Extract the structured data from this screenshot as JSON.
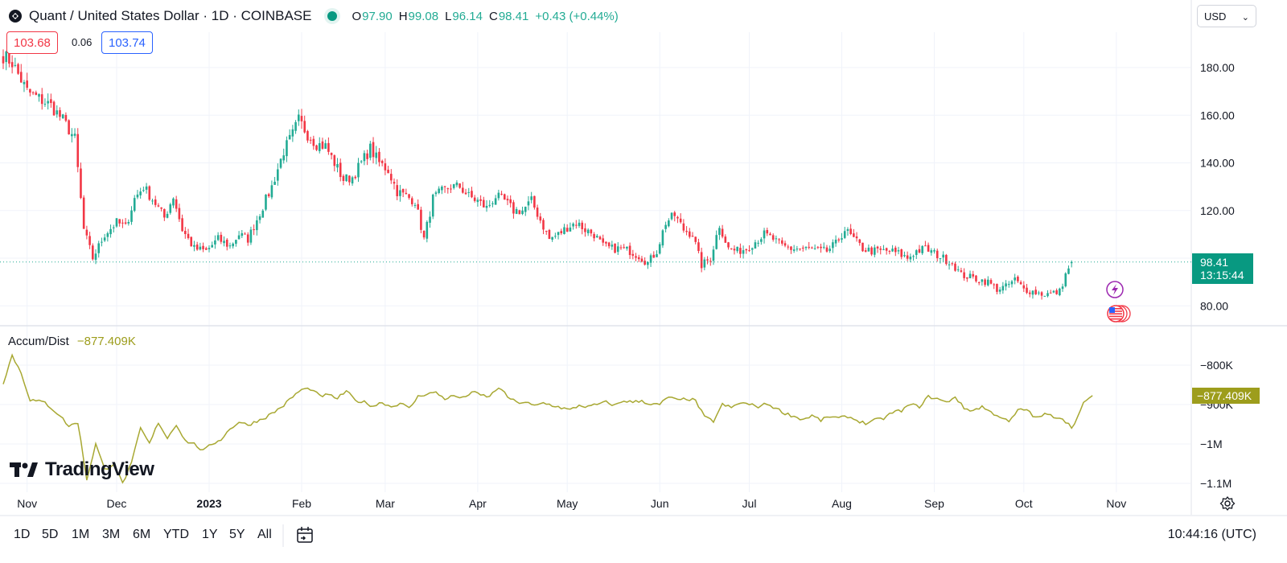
{
  "header": {
    "title": "Quant / United States Dollar · 1D · COINBASE",
    "ohlc": [
      {
        "key": "O",
        "value": "97.90"
      },
      {
        "key": "H",
        "value": "99.08"
      },
      {
        "key": "L",
        "value": "96.14"
      },
      {
        "key": "C",
        "value": "98.41"
      }
    ],
    "change": "+0.43 (+0.44%)",
    "sell_price": "103.68",
    "spread": "0.06",
    "buy_price": "103.74",
    "currency": "USD"
  },
  "indicator": {
    "name": "Accum/Dist",
    "value": "−877.409K"
  },
  "last_price": {
    "price": "98.41",
    "countdown": "13:15:44",
    "ad_value": "−877.409K"
  },
  "price_axis": {
    "ticks": [
      "180.00",
      "160.00",
      "140.00",
      "120.00",
      "80.00"
    ],
    "values": [
      180,
      160,
      140,
      120,
      80
    ]
  },
  "ad_axis": {
    "ticks": [
      "−800K",
      "−900K",
      "−1M",
      "−1.1M"
    ],
    "values": [
      -800,
      -900,
      -1000,
      -1100
    ]
  },
  "time_axis": {
    "labels": [
      "Nov",
      "Dec",
      "2023",
      "Feb",
      "Mar",
      "Apr",
      "May",
      "Jun",
      "Jul",
      "Aug",
      "Sep",
      "Oct",
      "Nov"
    ]
  },
  "brand": "TradingView",
  "timeframes": [
    "1D",
    "5D",
    "1M",
    "3M",
    "6M",
    "YTD",
    "1Y",
    "5Y",
    "All"
  ],
  "clock": "10:44:16 (UTC)",
  "colors": {
    "up": "#22ab94",
    "down": "#f23645",
    "ad_line": "#a8a832",
    "grid": "#f0f3fa"
  },
  "chart_data": {
    "type": "candlestick",
    "ylim": [
      72,
      197
    ],
    "ad_ylim": [
      -1130,
      -760
    ],
    "start_date": "2022-10-24",
    "anchors": [
      [
        0,
        185
      ],
      [
        3,
        182
      ],
      [
        8,
        170
      ],
      [
        16,
        164
      ],
      [
        20,
        158
      ],
      [
        24,
        150
      ],
      [
        27,
        112
      ],
      [
        30,
        100
      ],
      [
        34,
        110
      ],
      [
        38,
        115
      ],
      [
        41,
        113
      ],
      [
        44,
        125
      ],
      [
        47,
        130
      ],
      [
        51,
        123
      ],
      [
        54,
        117
      ],
      [
        57,
        126
      ],
      [
        60,
        112
      ],
      [
        64,
        104
      ],
      [
        68,
        103
      ],
      [
        72,
        108
      ],
      [
        76,
        105
      ],
      [
        79,
        110
      ],
      [
        82,
        108
      ],
      [
        86,
        119
      ],
      [
        90,
        130
      ],
      [
        94,
        145
      ],
      [
        97,
        152
      ],
      [
        99,
        158
      ],
      [
        102,
        152
      ],
      [
        105,
        148
      ],
      [
        108,
        147
      ],
      [
        111,
        140
      ],
      [
        114,
        133
      ],
      [
        117,
        134
      ],
      [
        120,
        140
      ],
      [
        123,
        146
      ],
      [
        126,
        140
      ],
      [
        129,
        137
      ],
      [
        132,
        128
      ],
      [
        135,
        126
      ],
      [
        138,
        124
      ],
      [
        141,
        108
      ],
      [
        144,
        125
      ],
      [
        147,
        128
      ],
      [
        150,
        130
      ],
      [
        153,
        130
      ],
      [
        156,
        126
      ],
      [
        159,
        124
      ],
      [
        162,
        121
      ],
      [
        165,
        126
      ],
      [
        168,
        124
      ],
      [
        171,
        120
      ],
      [
        174,
        120
      ],
      [
        177,
        124
      ],
      [
        180,
        116
      ],
      [
        183,
        108
      ],
      [
        186,
        110
      ],
      [
        189,
        113
      ],
      [
        192,
        115
      ],
      [
        195,
        112
      ],
      [
        198,
        110
      ],
      [
        201,
        105
      ],
      [
        204,
        104
      ],
      [
        207,
        104
      ],
      [
        210,
        103
      ],
      [
        213,
        101
      ],
      [
        216,
        98
      ],
      [
        219,
        103
      ],
      [
        222,
        115
      ],
      [
        225,
        118
      ],
      [
        228,
        112
      ],
      [
        231,
        110
      ],
      [
        234,
        97
      ],
      [
        237,
        100
      ],
      [
        240,
        114
      ],
      [
        243,
        104
      ],
      [
        246,
        103
      ],
      [
        249,
        104
      ],
      [
        252,
        107
      ],
      [
        255,
        110
      ],
      [
        258,
        108
      ],
      [
        261,
        105
      ],
      [
        264,
        104
      ],
      [
        267,
        104
      ],
      [
        270,
        104
      ],
      [
        273,
        103
      ],
      [
        276,
        103
      ],
      [
        279,
        106
      ],
      [
        282,
        112
      ],
      [
        285,
        108
      ],
      [
        288,
        104
      ],
      [
        291,
        103
      ],
      [
        294,
        103
      ],
      [
        297,
        103
      ],
      [
        300,
        102
      ],
      [
        303,
        100
      ],
      [
        306,
        103
      ],
      [
        309,
        104
      ],
      [
        312,
        102
      ],
      [
        315,
        100
      ],
      [
        318,
        98
      ],
      [
        321,
        93
      ],
      [
        324,
        92
      ],
      [
        327,
        91
      ],
      [
        330,
        90
      ],
      [
        333,
        87
      ],
      [
        336,
        88
      ],
      [
        339,
        91
      ],
      [
        342,
        87
      ],
      [
        345,
        86
      ],
      [
        348,
        85
      ],
      [
        351,
        85
      ],
      [
        354,
        86
      ],
      [
        356,
        93
      ],
      [
        357,
        96
      ],
      [
        358,
        98.41
      ]
    ],
    "ad_anchors": [
      [
        0,
        -845
      ],
      [
        3,
        -775
      ],
      [
        6,
        -820
      ],
      [
        9,
        -888
      ],
      [
        14,
        -895
      ],
      [
        19,
        -928
      ],
      [
        22,
        -955
      ],
      [
        25,
        -945
      ],
      [
        28,
        -1090
      ],
      [
        31,
        -1000
      ],
      [
        34,
        -1065
      ],
      [
        37,
        -1050
      ],
      [
        40,
        -1100
      ],
      [
        43,
        -1050
      ],
      [
        46,
        -960
      ],
      [
        49,
        -1000
      ],
      [
        52,
        -945
      ],
      [
        55,
        -985
      ],
      [
        58,
        -950
      ],
      [
        61,
        -992
      ],
      [
        64,
        -1000
      ],
      [
        67,
        -1018
      ],
      [
        70,
        -1000
      ],
      [
        73,
        -988
      ],
      [
        76,
        -962
      ],
      [
        79,
        -944
      ],
      [
        82,
        -952
      ],
      [
        85,
        -942
      ],
      [
        88,
        -932
      ],
      [
        91,
        -918
      ],
      [
        94,
        -902
      ],
      [
        97,
        -880
      ],
      [
        100,
        -862
      ],
      [
        103,
        -860
      ],
      [
        106,
        -878
      ],
      [
        109,
        -876
      ],
      [
        112,
        -884
      ],
      [
        115,
        -866
      ],
      [
        118,
        -890
      ],
      [
        121,
        -894
      ],
      [
        124,
        -904
      ],
      [
        127,
        -894
      ],
      [
        130,
        -906
      ],
      [
        133,
        -896
      ],
      [
        136,
        -910
      ],
      [
        139,
        -880
      ],
      [
        142,
        -872
      ],
      [
        145,
        -870
      ],
      [
        148,
        -885
      ],
      [
        151,
        -878
      ],
      [
        154,
        -884
      ],
      [
        157,
        -868
      ],
      [
        160,
        -876
      ],
      [
        163,
        -880
      ],
      [
        166,
        -856
      ],
      [
        169,
        -880
      ],
      [
        172,
        -895
      ],
      [
        175,
        -894
      ],
      [
        178,
        -904
      ],
      [
        181,
        -896
      ],
      [
        184,
        -902
      ],
      [
        187,
        -908
      ],
      [
        190,
        -914
      ],
      [
        193,
        -902
      ],
      [
        196,
        -906
      ],
      [
        199,
        -900
      ],
      [
        202,
        -894
      ],
      [
        205,
        -902
      ],
      [
        208,
        -890
      ],
      [
        211,
        -894
      ],
      [
        214,
        -890
      ],
      [
        217,
        -900
      ],
      [
        220,
        -900
      ],
      [
        223,
        -880
      ],
      [
        226,
        -890
      ],
      [
        229,
        -885
      ],
      [
        232,
        -890
      ],
      [
        235,
        -932
      ],
      [
        238,
        -942
      ],
      [
        241,
        -900
      ],
      [
        244,
        -908
      ],
      [
        247,
        -895
      ],
      [
        250,
        -900
      ],
      [
        253,
        -905
      ],
      [
        256,
        -898
      ],
      [
        259,
        -910
      ],
      [
        262,
        -922
      ],
      [
        265,
        -930
      ],
      [
        268,
        -938
      ],
      [
        271,
        -928
      ],
      [
        274,
        -940
      ],
      [
        277,
        -930
      ],
      [
        280,
        -935
      ],
      [
        283,
        -930
      ],
      [
        286,
        -940
      ],
      [
        289,
        -948
      ],
      [
        292,
        -940
      ],
      [
        295,
        -935
      ],
      [
        298,
        -920
      ],
      [
        301,
        -915
      ],
      [
        304,
        -900
      ],
      [
        307,
        -905
      ],
      [
        310,
        -880
      ],
      [
        313,
        -885
      ],
      [
        316,
        -895
      ],
      [
        319,
        -880
      ],
      [
        322,
        -910
      ],
      [
        325,
        -915
      ],
      [
        328,
        -905
      ],
      [
        331,
        -920
      ],
      [
        334,
        -930
      ],
      [
        337,
        -945
      ],
      [
        340,
        -915
      ],
      [
        343,
        -912
      ],
      [
        346,
        -935
      ],
      [
        349,
        -925
      ],
      [
        352,
        -930
      ],
      [
        355,
        -935
      ],
      [
        358,
        -958
      ],
      [
        360,
        -932
      ],
      [
        362,
        -898
      ],
      [
        365,
        -877.409
      ]
    ]
  }
}
